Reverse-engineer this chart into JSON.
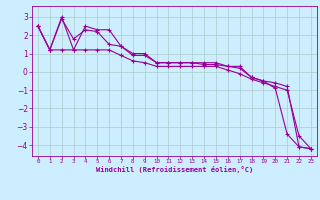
{
  "background_color": "#cceeff",
  "grid_color": "#aacccc",
  "line_color": "#990099",
  "marker_color": "#990099",
  "xlabel": "Windchill (Refroidissement éolien,°C)",
  "xlim": [
    -0.5,
    23.5
  ],
  "ylim": [
    -4.6,
    3.6
  ],
  "yticks": [
    -4,
    -3,
    -2,
    -1,
    0,
    1,
    2,
    3
  ],
  "xticks": [
    0,
    1,
    2,
    3,
    4,
    5,
    6,
    7,
    8,
    9,
    10,
    11,
    12,
    13,
    14,
    15,
    16,
    17,
    18,
    19,
    20,
    21,
    22,
    23
  ],
  "series1_x": [
    0,
    1,
    2,
    3,
    4,
    5,
    6,
    7,
    8,
    9,
    10,
    11,
    12,
    13,
    14,
    15,
    16,
    17,
    18,
    19,
    20,
    21,
    22,
    23
  ],
  "series1_y": [
    2.5,
    1.2,
    3.0,
    1.2,
    2.5,
    2.3,
    2.3,
    1.4,
    1.0,
    1.0,
    0.5,
    0.5,
    0.5,
    0.5,
    0.5,
    0.5,
    0.3,
    0.3,
    -0.3,
    -0.5,
    -0.6,
    -0.8,
    -4.1,
    -4.2
  ],
  "series2_x": [
    0,
    1,
    2,
    3,
    4,
    5,
    6,
    7,
    8,
    9,
    10,
    11,
    12,
    13,
    14,
    15,
    16,
    17,
    18,
    19,
    20,
    21,
    22,
    23
  ],
  "series2_y": [
    2.5,
    1.2,
    2.9,
    1.8,
    2.3,
    2.2,
    1.5,
    1.4,
    0.9,
    0.9,
    0.5,
    0.5,
    0.5,
    0.5,
    0.4,
    0.4,
    0.3,
    0.2,
    -0.3,
    -0.5,
    -0.9,
    -3.4,
    -4.1,
    -4.2
  ],
  "series3_x": [
    0,
    1,
    2,
    3,
    4,
    5,
    6,
    7,
    8,
    9,
    10,
    11,
    12,
    13,
    14,
    15,
    16,
    17,
    18,
    19,
    20,
    21,
    22,
    23
  ],
  "series3_y": [
    2.5,
    1.2,
    1.2,
    1.2,
    1.2,
    1.2,
    1.2,
    0.9,
    0.6,
    0.5,
    0.3,
    0.3,
    0.3,
    0.3,
    0.3,
    0.3,
    0.1,
    -0.1,
    -0.4,
    -0.6,
    -0.8,
    -1.0,
    -3.5,
    -4.2
  ],
  "xlabel_fontsize": 5.0,
  "ytick_fontsize": 5.5,
  "xtick_fontsize": 4.2
}
